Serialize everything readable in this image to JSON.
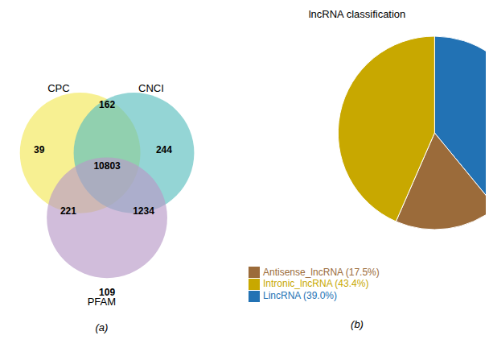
{
  "chart_data": [
    {
      "type": "venn",
      "sets": [
        "CPC",
        "CNCI",
        "PFAM"
      ],
      "values": [
        39,
        244,
        109,
        162,
        221,
        1234,
        10803
      ],
      "colors": [
        "#F2E858",
        "#5BBFBF",
        "#B89AC8"
      ],
      "subtitle": "(a)"
    },
    {
      "type": "pie",
      "title": "lncRNA classification",
      "categories": [
        "LincRNA (39.0%)",
        "Antisense_lncRNA (17.5%)",
        "Intronic_lncRNA (43.4%)"
      ],
      "values": [
        39.0,
        17.5,
        43.4
      ],
      "colors": [
        "#2272B4",
        "#9B6B3A",
        "#C8A800"
      ],
      "legend": "bottom",
      "subtitle": "(b)"
    }
  ]
}
